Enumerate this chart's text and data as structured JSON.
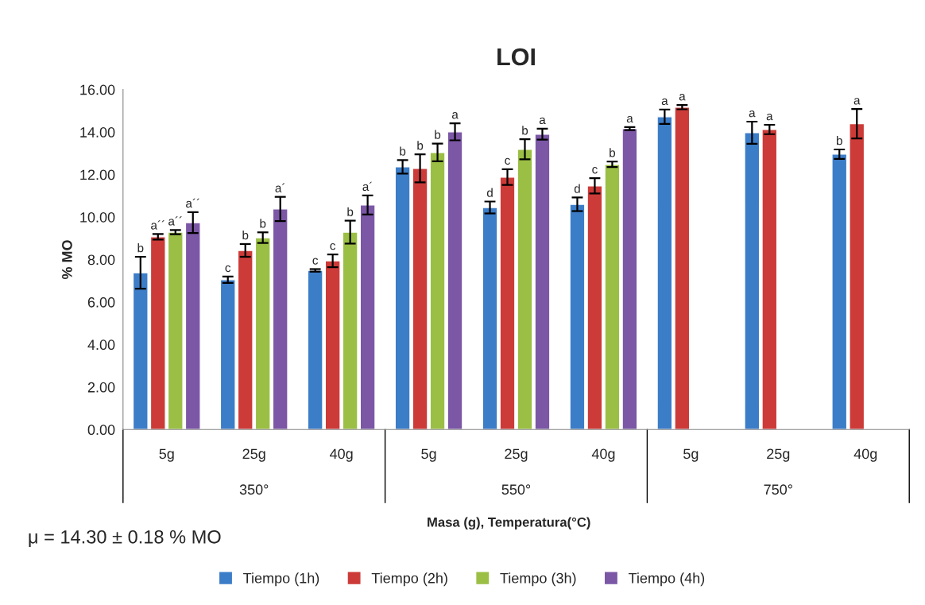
{
  "chart_data": {
    "type": "bar",
    "title": "LOI",
    "xlabel": "Masa (g), Temperatura(°C)",
    "ylabel": "% MO",
    "categories": [
      "5g",
      "25g",
      "40g",
      "5g",
      "25g",
      "40g",
      "5g",
      "25g",
      "40g"
    ],
    "annotations": [
      "350°",
      "550°",
      "750°",
      "μ = 14.30 ± 0.18 % MO"
    ],
    "series": [
      {
        "name": "Tiempo (1h)",
        "color": "#3c7dc8",
        "values": [
          7.38,
          7.05,
          7.49,
          12.36,
          10.45,
          10.6,
          14.72,
          13.97,
          12.96
        ],
        "errors": [
          0.75,
          0.15,
          0.06,
          0.32,
          0.28,
          0.32,
          0.34,
          0.52,
          0.22
        ],
        "value_labels": [
          "b",
          "c",
          "c",
          "b",
          "d",
          "d",
          "a",
          "a",
          "b"
        ]
      },
      {
        "name": "Tiempo (2h)",
        "color": "#cc3b38",
        "values": [
          9.07,
          8.43,
          7.94,
          12.29,
          11.88,
          11.47,
          15.17,
          14.12,
          14.39
        ],
        "errors": [
          0.13,
          0.3,
          0.3,
          0.66,
          0.37,
          0.36,
          0.1,
          0.22,
          0.69
        ],
        "value_labels": [
          "a´´",
          "b",
          "c",
          "b",
          "c",
          "c",
          "a",
          "a",
          "a"
        ]
      },
      {
        "name": "Tiempo (3h)",
        "color": "#9bbf45",
        "values": [
          9.29,
          9.03,
          9.29,
          13.04,
          13.19,
          12.48,
          null,
          null,
          null
        ],
        "errors": [
          0.1,
          0.25,
          0.54,
          0.42,
          0.47,
          0.13,
          null,
          null,
          null
        ],
        "value_labels": [
          "a´´",
          "b",
          "b",
          "b",
          "b",
          "b",
          null,
          null,
          null
        ]
      },
      {
        "name": "Tiempo (4h)",
        "color": "#7b57a6",
        "values": [
          9.74,
          10.38,
          10.57,
          14.01,
          13.9,
          14.16,
          null,
          null,
          null
        ],
        "errors": [
          0.49,
          0.57,
          0.45,
          0.4,
          0.26,
          0.07,
          null,
          null,
          null
        ],
        "value_labels": [
          "a´´",
          "a´",
          "a´",
          "a",
          "a",
          "a",
          null,
          null,
          null
        ]
      }
    ],
    "ylim": [
      0,
      16
    ],
    "yticks": [
      {
        "value": 0,
        "label": "0.00"
      },
      {
        "value": 2,
        "label": "2.00"
      },
      {
        "value": 4,
        "label": "4.00"
      },
      {
        "value": 6,
        "label": "6.00"
      },
      {
        "value": 8,
        "label": "8.00"
      },
      {
        "value": 10,
        "label": "10.00"
      },
      {
        "value": 12,
        "label": "12.00"
      },
      {
        "value": 14,
        "label": "14.00"
      },
      {
        "value": 16,
        "label": "16.00"
      }
    ],
    "grid": false,
    "legend": "bottom"
  }
}
